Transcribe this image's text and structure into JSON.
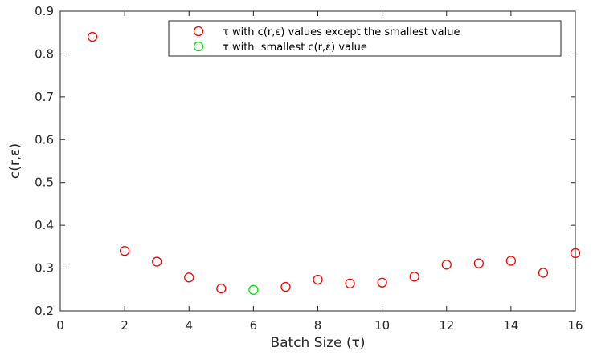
{
  "chart_data": {
    "type": "scatter",
    "xlabel": "Batch Size (τ)",
    "ylabel": "c(r,ε)",
    "xlim": [
      0,
      16
    ],
    "ylim": [
      0.2,
      0.9
    ],
    "xticks": [
      0,
      2,
      4,
      6,
      8,
      10,
      12,
      14,
      16
    ],
    "yticks": [
      0.2,
      0.3,
      0.4,
      0.5,
      0.6,
      0.7,
      0.8,
      0.9
    ],
    "xtick_labels": [
      "0",
      "2",
      "4",
      "6",
      "8",
      "10",
      "12",
      "14",
      "16"
    ],
    "ytick_labels": [
      "0.2",
      "0.3",
      "0.4",
      "0.5",
      "0.6",
      "0.7",
      "0.8",
      "0.9"
    ],
    "grid": false,
    "legend_position": "top-right",
    "series": [
      {
        "name": "τ with c(r,ε) values except the smallest value",
        "color": "#ff0000",
        "marker": "open-circle",
        "x": [
          1,
          2,
          3,
          4,
          5,
          7,
          8,
          9,
          10,
          11,
          12,
          13,
          14,
          15,
          16
        ],
        "y": [
          0.84,
          0.34,
          0.315,
          0.278,
          0.252,
          0.256,
          0.273,
          0.264,
          0.266,
          0.28,
          0.308,
          0.311,
          0.317,
          0.289,
          0.335
        ]
      },
      {
        "name": "τ with  smallest c(r,ε) value",
        "color": "#00e000",
        "marker": "open-circle",
        "x": [
          6
        ],
        "y": [
          0.249
        ]
      }
    ]
  }
}
